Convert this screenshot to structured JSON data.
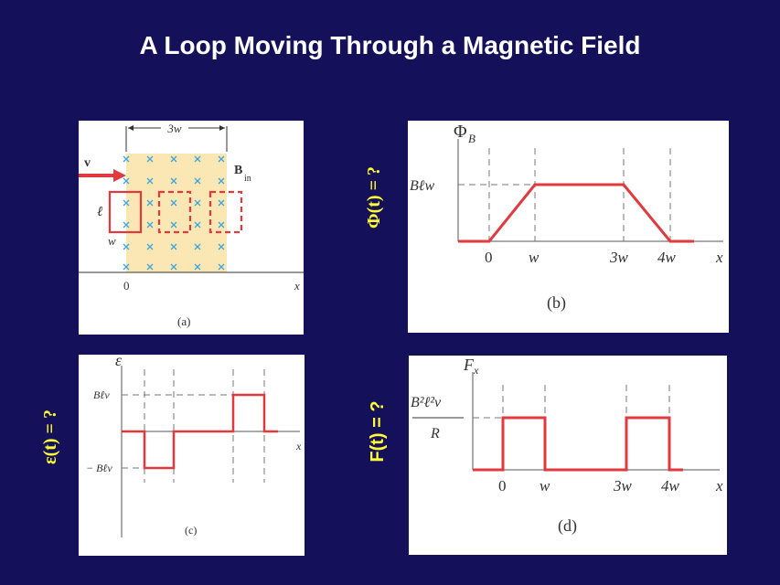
{
  "title": "A Loop Moving Through a Magnetic Field",
  "colors": {
    "background": "#14115a",
    "curve": "#e0393e",
    "label": "#ffff33",
    "field": "#fbe7b4",
    "field_x": "#3fa6e0"
  },
  "side_labels": {
    "flux": "Φ(t) = ?",
    "emf": "ε(t) = ?",
    "force": "F(t) = ?"
  },
  "panel_a": {
    "caption": "(a)",
    "width_label": "3w",
    "velocity": "v",
    "field": "B",
    "field_sub": "in",
    "loop_length": "ℓ",
    "loop_width": "w",
    "origin": "0",
    "axis": "x"
  },
  "panel_b": {
    "caption": "(b)",
    "ylabel": "Φ",
    "ylabel_sub": "B",
    "level_label": "Bℓw",
    "ticks": [
      "0",
      "w",
      "3w",
      "4w",
      "x"
    ]
  },
  "panel_c": {
    "caption": "(c)",
    "ylabel": "ε",
    "pos_label": "Bℓv",
    "neg_label": "− Bℓv",
    "axis": "x"
  },
  "panel_d": {
    "caption": "(d)",
    "ylabel": "F",
    "ylabel_sub": "x",
    "level_top": "B²ℓ²v",
    "level_bottom": "R",
    "ticks": [
      "0",
      "w",
      "3w",
      "4w",
      "x"
    ]
  }
}
